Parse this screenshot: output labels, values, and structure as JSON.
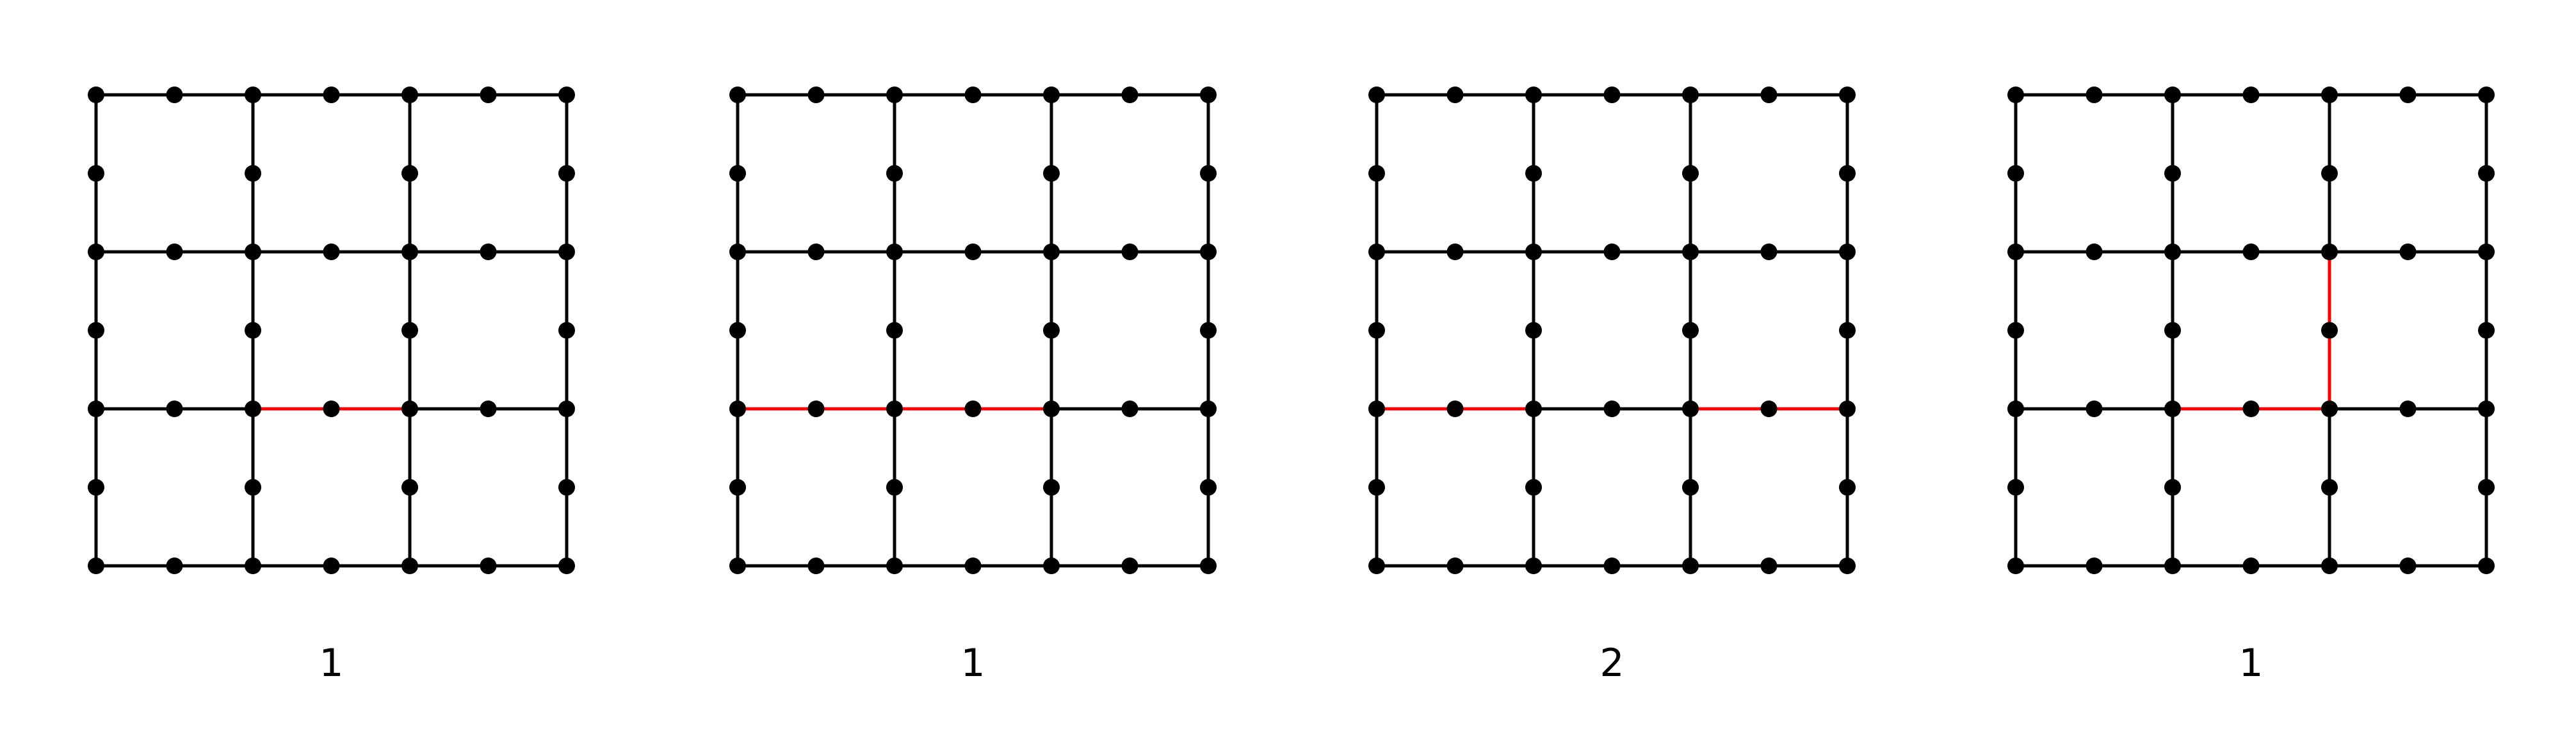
{
  "colors": {
    "background": "#ffffff",
    "grid_line": "#000000",
    "highlight_line": "#ff0000",
    "vertex": "#000000"
  },
  "grid": {
    "cells": 3,
    "subdivisions": 2
  },
  "panels": [
    {
      "label": "1",
      "highlighted_edges": [
        {
          "from": [
            1,
            2
          ],
          "to": [
            2,
            2
          ]
        }
      ]
    },
    {
      "label": "1",
      "highlighted_edges": [
        {
          "from": [
            0,
            2
          ],
          "to": [
            1,
            2
          ]
        },
        {
          "from": [
            1,
            2
          ],
          "to": [
            2,
            2
          ]
        }
      ]
    },
    {
      "label": "2",
      "highlighted_edges": [
        {
          "from": [
            0,
            2
          ],
          "to": [
            1,
            2
          ]
        },
        {
          "from": [
            2,
            2
          ],
          "to": [
            3,
            2
          ]
        }
      ]
    },
    {
      "label": "1",
      "highlighted_edges": [
        {
          "from": [
            1,
            2
          ],
          "to": [
            2,
            2
          ]
        },
        {
          "from": [
            2,
            1
          ],
          "to": [
            2,
            2
          ]
        }
      ]
    }
  ]
}
